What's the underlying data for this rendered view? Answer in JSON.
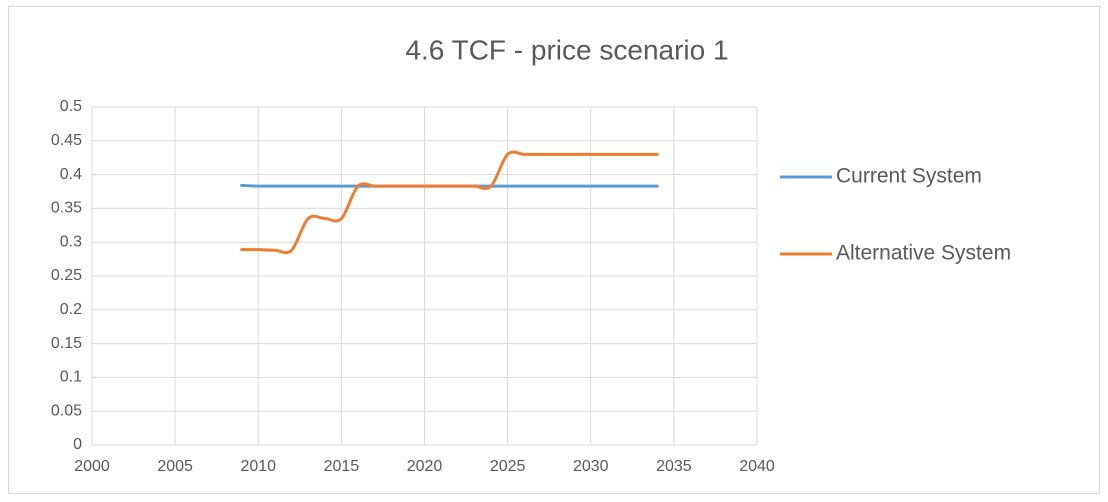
{
  "chart_data": {
    "type": "line",
    "title": "4.6 TCF - price scenario 1",
    "x": [
      2009,
      2010,
      2011,
      2012,
      2013,
      2014,
      2015,
      2016,
      2017,
      2018,
      2019,
      2020,
      2021,
      2022,
      2023,
      2024,
      2025,
      2026,
      2027,
      2028,
      2029,
      2030,
      2031,
      2032,
      2033,
      2034
    ],
    "series": [
      {
        "name": "Current System",
        "color": "#5b9bd5",
        "values": [
          0.384,
          0.383,
          0.383,
          0.383,
          0.383,
          0.383,
          0.383,
          0.383,
          0.383,
          0.383,
          0.383,
          0.383,
          0.383,
          0.383,
          0.383,
          0.383,
          0.383,
          0.383,
          0.383,
          0.383,
          0.383,
          0.383,
          0.383,
          0.383,
          0.383,
          0.383
        ]
      },
      {
        "name": "Alternative  System",
        "color": "#ed7d31",
        "values": [
          0.289,
          0.289,
          0.288,
          0.288,
          0.335,
          0.335,
          0.335,
          0.383,
          0.383,
          0.383,
          0.383,
          0.383,
          0.383,
          0.383,
          0.383,
          0.383,
          0.43,
          0.43,
          0.43,
          0.43,
          0.43,
          0.43,
          0.43,
          0.43,
          0.43,
          0.43
        ]
      }
    ],
    "xlim": [
      2000,
      2040
    ],
    "xticks": [
      2000,
      2005,
      2010,
      2015,
      2020,
      2025,
      2030,
      2035,
      2040
    ],
    "ylim": [
      0,
      0.5
    ],
    "yticks": [
      0,
      0.05,
      0.1,
      0.15,
      0.2,
      0.25,
      0.3,
      0.35,
      0.4,
      0.45,
      0.5
    ],
    "grid": true,
    "legend": "right"
  }
}
